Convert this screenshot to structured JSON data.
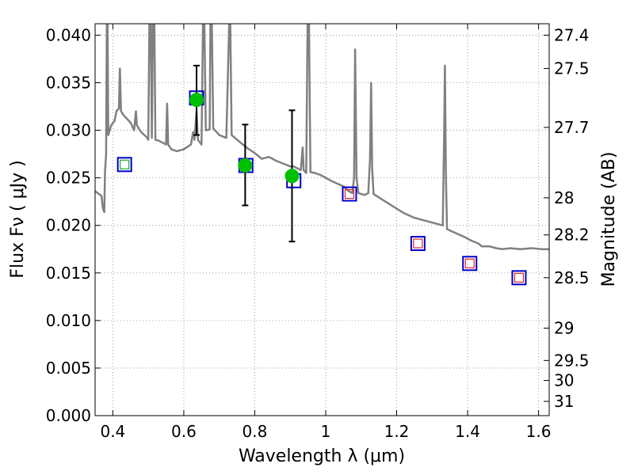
{
  "chart_data": {
    "type": "scatter",
    "xlabel": "Wavelength  λ (μm)",
    "ylabel_left": "Flux  Fν  ( μJy )",
    "ylabel_right": "Magnitude (AB)",
    "xlim": [
      0.35,
      1.63
    ],
    "ylim": [
      0.0,
      0.0412
    ],
    "grid": true,
    "x_ticks": [
      {
        "value": 0.4,
        "label": "0.4"
      },
      {
        "value": 0.6,
        "label": "0.6"
      },
      {
        "value": 0.8,
        "label": "0.8"
      },
      {
        "value": 1.0,
        "label": "1"
      },
      {
        "value": 1.2,
        "label": "1.2"
      },
      {
        "value": 1.4,
        "label": "1.4"
      },
      {
        "value": 1.6,
        "label": "1.6"
      }
    ],
    "y_ticks": [
      {
        "value": 0.0,
        "label": "0.000"
      },
      {
        "value": 0.005,
        "label": "0.005"
      },
      {
        "value": 0.01,
        "label": "0.010"
      },
      {
        "value": 0.015,
        "label": "0.015"
      },
      {
        "value": 0.02,
        "label": "0.020"
      },
      {
        "value": 0.025,
        "label": "0.025"
      },
      {
        "value": 0.03,
        "label": "0.030"
      },
      {
        "value": 0.035,
        "label": "0.035"
      },
      {
        "value": 0.04,
        "label": "0.040"
      }
    ],
    "mag_ticks": [
      {
        "flux": 0.04,
        "label": "27.4"
      },
      {
        "flux": 0.0365,
        "label": "27.5"
      },
      {
        "flux": 0.0303,
        "label": "27.7"
      },
      {
        "flux": 0.0229,
        "label": "28"
      },
      {
        "flux": 0.019,
        "label": "28.2"
      },
      {
        "flux": 0.0145,
        "label": "28.5"
      },
      {
        "flux": 0.0092,
        "label": "29"
      },
      {
        "flux": 0.0058,
        "label": "29.5"
      },
      {
        "flux": 0.0037,
        "label": "30"
      },
      {
        "flux": 0.0015,
        "label": "31"
      }
    ],
    "series": [
      {
        "kind": "line",
        "color": "#808080",
        "points": [
          [
            0.35,
            0.0236
          ],
          [
            0.368,
            0.0231
          ],
          [
            0.372,
            0.0218
          ],
          [
            0.376,
            0.0214
          ],
          [
            0.378,
            0.0256
          ],
          [
            0.381,
            0.0275
          ],
          [
            0.383,
            0.0412
          ],
          [
            0.385,
            0.0412
          ],
          [
            0.387,
            0.0295
          ],
          [
            0.395,
            0.0305
          ],
          [
            0.405,
            0.031
          ],
          [
            0.41,
            0.032
          ],
          [
            0.417,
            0.0323
          ],
          [
            0.42,
            0.0365
          ],
          [
            0.423,
            0.032
          ],
          [
            0.43,
            0.0316
          ],
          [
            0.44,
            0.0312
          ],
          [
            0.45,
            0.0308
          ],
          [
            0.46,
            0.03
          ],
          [
            0.465,
            0.032
          ],
          [
            0.468,
            0.0305
          ],
          [
            0.48,
            0.0298
          ],
          [
            0.495,
            0.0293
          ],
          [
            0.5,
            0.029
          ],
          [
            0.503,
            0.0412
          ],
          [
            0.507,
            0.0412
          ],
          [
            0.51,
            0.0292
          ],
          [
            0.513,
            0.0412
          ],
          [
            0.517,
            0.0412
          ],
          [
            0.52,
            0.029
          ],
          [
            0.53,
            0.0289
          ],
          [
            0.54,
            0.0287
          ],
          [
            0.55,
            0.0285
          ],
          [
            0.553,
            0.0328
          ],
          [
            0.556,
            0.0285
          ],
          [
            0.565,
            0.028
          ],
          [
            0.58,
            0.0278
          ],
          [
            0.6,
            0.028
          ],
          [
            0.62,
            0.0285
          ],
          [
            0.626,
            0.0298
          ],
          [
            0.63,
            0.029
          ],
          [
            0.636,
            0.032
          ],
          [
            0.64,
            0.029
          ],
          [
            0.65,
            0.0285
          ],
          [
            0.654,
            0.0412
          ],
          [
            0.658,
            0.0412
          ],
          [
            0.662,
            0.03
          ],
          [
            0.673,
            0.0301
          ],
          [
            0.675,
            0.0412
          ],
          [
            0.679,
            0.0412
          ],
          [
            0.683,
            0.0302
          ],
          [
            0.7,
            0.0295
          ],
          [
            0.72,
            0.0292
          ],
          [
            0.728,
            0.0412
          ],
          [
            0.731,
            0.0412
          ],
          [
            0.735,
            0.0295
          ],
          [
            0.76,
            0.0287
          ],
          [
            0.78,
            0.0281
          ],
          [
            0.8,
            0.0276
          ],
          [
            0.82,
            0.027
          ],
          [
            0.84,
            0.0272
          ],
          [
            0.86,
            0.0268
          ],
          [
            0.88,
            0.0265
          ],
          [
            0.9,
            0.0262
          ],
          [
            0.91,
            0.0262
          ],
          [
            0.93,
            0.0258
          ],
          [
            0.935,
            0.0282
          ],
          [
            0.938,
            0.0258
          ],
          [
            0.945,
            0.0255
          ],
          [
            0.949,
            0.0412
          ],
          [
            0.953,
            0.0412
          ],
          [
            0.957,
            0.0256
          ],
          [
            0.97,
            0.0255
          ],
          [
            0.985,
            0.0253
          ],
          [
            1.0,
            0.025
          ],
          [
            1.02,
            0.0246
          ],
          [
            1.05,
            0.0241
          ],
          [
            1.065,
            0.0236
          ],
          [
            1.075,
            0.0234
          ],
          [
            1.08,
            0.025
          ],
          [
            1.083,
            0.0385
          ],
          [
            1.087,
            0.025
          ],
          [
            1.092,
            0.0234
          ],
          [
            1.11,
            0.0232
          ],
          [
            1.12,
            0.0234
          ],
          [
            1.125,
            0.027
          ],
          [
            1.128,
            0.035
          ],
          [
            1.131,
            0.026
          ],
          [
            1.135,
            0.0233
          ],
          [
            1.16,
            0.0227
          ],
          [
            1.19,
            0.022
          ],
          [
            1.22,
            0.0213
          ],
          [
            1.25,
            0.0208
          ],
          [
            1.28,
            0.0205
          ],
          [
            1.31,
            0.0202
          ],
          [
            1.33,
            0.02
          ],
          [
            1.334,
            0.03
          ],
          [
            1.336,
            0.0368
          ],
          [
            1.339,
            0.025
          ],
          [
            1.342,
            0.0196
          ],
          [
            1.36,
            0.0193
          ],
          [
            1.39,
            0.0188
          ],
          [
            1.41,
            0.0184
          ],
          [
            1.43,
            0.0181
          ],
          [
            1.44,
            0.0178
          ],
          [
            1.46,
            0.0178
          ],
          [
            1.48,
            0.0176
          ],
          [
            1.5,
            0.0175
          ],
          [
            1.52,
            0.0176
          ],
          [
            1.55,
            0.0175
          ],
          [
            1.58,
            0.0176
          ],
          [
            1.61,
            0.0175
          ],
          [
            1.63,
            0.0175
          ]
        ]
      },
      {
        "kind": "open_squares",
        "edge_color": "#0000cc",
        "points": [
          [
            0.433,
            0.0264
          ],
          [
            0.636,
            0.0334
          ],
          [
            0.775,
            0.0263
          ],
          [
            0.91,
            0.0247
          ],
          [
            1.067,
            0.0233
          ],
          [
            1.26,
            0.0181
          ],
          [
            1.406,
            0.016
          ],
          [
            1.545,
            0.0145
          ]
        ]
      },
      {
        "kind": "inner_squares_green",
        "edge_color": "#22aa22",
        "points": [
          [
            0.433,
            0.0264
          ]
        ]
      },
      {
        "kind": "inner_squares_red",
        "edge_color": "#dd2222",
        "points": [
          [
            1.067,
            0.0233
          ],
          [
            1.26,
            0.0181
          ],
          [
            1.406,
            0.016
          ],
          [
            1.545,
            0.0145
          ]
        ]
      },
      {
        "kind": "filled_circles_with_errorbars",
        "color": "#00c000",
        "points": [
          {
            "x": 0.636,
            "y": 0.0332,
            "ylo": 0.0295,
            "yhi": 0.0368
          },
          {
            "x": 0.773,
            "y": 0.0263,
            "ylo": 0.0221,
            "yhi": 0.0306
          },
          {
            "x": 0.905,
            "y": 0.0252,
            "ylo": 0.0183,
            "yhi": 0.0321
          }
        ]
      }
    ]
  }
}
